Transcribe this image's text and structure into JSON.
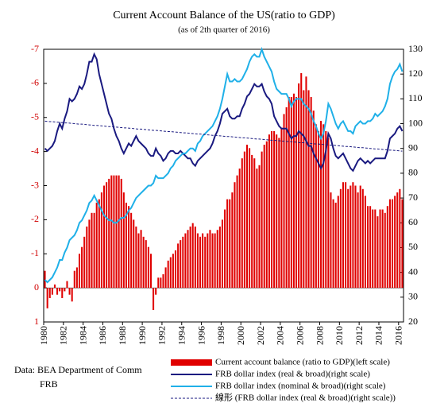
{
  "chart_data": {
    "type": "combo",
    "title": "Current Account Balance  of the US(ratio  to GDP)",
    "subtitle": "(as of 2th quarter of 2016)",
    "source": [
      "Data: BEA Department of Comm",
      "FRB"
    ],
    "legend_position": "bottom",
    "categories": [
      "1980",
      null,
      null,
      null,
      null,
      null,
      null,
      null,
      "1982",
      null,
      null,
      null,
      null,
      null,
      null,
      null,
      "1984",
      null,
      null,
      null,
      null,
      null,
      null,
      null,
      "1986",
      null,
      null,
      null,
      null,
      null,
      null,
      null,
      "1988",
      null,
      null,
      null,
      null,
      null,
      null,
      null,
      "1990",
      null,
      null,
      null,
      null,
      null,
      null,
      null,
      "1992",
      null,
      null,
      null,
      null,
      null,
      null,
      null,
      "1994",
      null,
      null,
      null,
      null,
      null,
      null,
      null,
      "1996",
      null,
      null,
      null,
      null,
      null,
      null,
      null,
      "1998",
      null,
      null,
      null,
      null,
      null,
      null,
      null,
      "2000",
      null,
      null,
      null,
      null,
      null,
      null,
      null,
      "2002",
      null,
      null,
      null,
      null,
      null,
      null,
      null,
      "2004",
      null,
      null,
      null,
      null,
      null,
      null,
      null,
      "2006",
      null,
      null,
      null,
      null,
      null,
      null,
      null,
      "2008",
      null,
      null,
      null,
      null,
      null,
      null,
      null,
      "2010",
      null,
      null,
      null,
      null,
      null,
      null,
      null,
      "2012",
      null,
      null,
      null,
      null,
      null,
      null,
      null,
      "2014",
      null,
      null,
      null,
      null,
      null,
      null,
      null,
      "2016",
      null
    ],
    "ylim": [
      1,
      -7
    ],
    "yticks": [
      -7,
      -6,
      -5,
      -4,
      -3,
      -2,
      -1,
      0,
      1
    ],
    "y2lim": [
      20,
      130
    ],
    "y2ticks": [
      20,
      30,
      40,
      50,
      60,
      70,
      80,
      90,
      100,
      110,
      120,
      130
    ],
    "series": [
      {
        "name": "Current account balance (ratio to GDP)(left scale)",
        "type": "bar",
        "color": "#e00000",
        "values": [
          -0.5,
          0.6,
          0.3,
          0.2,
          -0.1,
          0.2,
          0.1,
          0.3,
          0.1,
          -0.2,
          0.2,
          0.4,
          -0.5,
          -0.6,
          -1.0,
          -1.2,
          -1.5,
          -1.8,
          -2.0,
          -2.2,
          -2.2,
          -2.5,
          -2.6,
          -2.8,
          -3.0,
          -3.1,
          -3.2,
          -3.3,
          -3.3,
          -3.3,
          -3.3,
          -3.2,
          -2.8,
          -2.5,
          -2.4,
          -2.2,
          -2.0,
          -1.8,
          -1.6,
          -1.7,
          -1.5,
          -1.4,
          -1.2,
          -1.0,
          0.65,
          0.2,
          -0.3,
          -0.3,
          -0.4,
          -0.6,
          -0.8,
          -0.9,
          -1.0,
          -1.1,
          -1.3,
          -1.4,
          -1.5,
          -1.6,
          -1.7,
          -1.8,
          -1.9,
          -1.8,
          -1.6,
          -1.5,
          -1.6,
          -1.5,
          -1.6,
          -1.7,
          -1.6,
          -1.6,
          -1.7,
          -1.8,
          -2.0,
          -2.3,
          -2.6,
          -2.6,
          -2.8,
          -3.1,
          -3.3,
          -3.5,
          -3.8,
          -4.0,
          -4.2,
          -4.1,
          -3.9,
          -3.8,
          -3.5,
          -3.6,
          -4.0,
          -4.2,
          -4.3,
          -4.5,
          -4.6,
          -4.6,
          -4.5,
          -4.4,
          -4.7,
          -5.1,
          -5.3,
          -5.6,
          -5.6,
          -5.7,
          -5.6,
          -6.0,
          -6.3,
          -5.8,
          -6.2,
          -5.8,
          -5.6,
          -5.2,
          -4.8,
          -4.6,
          -4.9,
          -4.8,
          -4.6,
          -4.4,
          -2.8,
          -2.6,
          -2.5,
          -2.7,
          -2.9,
          -3.1,
          -3.1,
          -2.9,
          -3.0,
          -3.1,
          -3.0,
          -2.8,
          -3.0,
          -2.9,
          -2.7,
          -2.4,
          -2.4,
          -2.3,
          -2.3,
          -2.1,
          -2.3,
          -2.3,
          -2.2,
          -2.4,
          -2.6,
          -2.6,
          -2.7,
          -2.8,
          -2.9,
          -2.6
        ]
      },
      {
        "name": "FRB dollar index (real & broad)(right scale)",
        "type": "line",
        "axis": "y2",
        "color": "#1a1a80",
        "values": [
          90,
          89,
          90,
          91,
          93,
          97,
          100,
          98,
          102,
          105,
          110,
          109,
          110,
          112,
          115,
          114,
          116,
          120,
          125,
          125,
          128,
          126,
          120,
          116,
          112,
          108,
          104,
          102,
          98,
          95,
          93,
          90,
          88,
          90,
          92,
          91,
          93,
          95,
          93,
          92,
          91,
          90,
          88,
          87,
          87,
          90,
          88,
          87,
          85,
          86,
          88,
          89,
          89,
          88,
          88,
          89,
          88,
          87,
          86,
          86,
          84,
          83,
          85,
          86,
          87,
          88,
          89,
          90,
          92,
          95,
          97,
          100,
          104,
          105,
          106,
          103,
          102,
          102,
          103,
          103,
          106,
          108,
          111,
          112,
          114,
          116,
          115,
          115,
          116,
          113,
          111,
          110,
          108,
          103,
          101,
          99,
          98,
          98,
          98,
          96,
          94,
          95,
          95,
          97,
          96,
          95,
          93,
          91,
          91,
          88,
          86,
          84,
          82,
          84,
          89,
          96,
          94,
          90,
          87,
          86,
          87,
          88,
          86,
          84,
          82,
          81,
          83,
          85,
          86,
          85,
          84,
          85,
          84,
          85,
          86,
          86,
          86,
          86,
          86,
          89,
          94,
          95,
          96,
          98,
          99,
          97
        ]
      },
      {
        "name": "FRB dollar index (nominal & broad)(right scale)",
        "type": "line",
        "axis": "y2",
        "color": "#1fb0e8",
        "values": [
          37,
          36,
          37,
          38,
          40,
          42,
          45,
          45,
          48,
          50,
          53,
          54,
          55,
          57,
          60,
          61,
          63,
          65,
          68,
          69,
          71,
          69,
          67,
          65,
          63,
          62,
          61,
          61,
          60,
          60,
          61,
          62,
          62,
          63,
          65,
          66,
          68,
          70,
          71,
          72,
          73,
          74,
          75,
          75,
          76,
          79,
          78,
          78,
          78,
          79,
          80,
          82,
          83,
          85,
          86,
          87,
          88,
          88,
          89,
          90,
          90,
          89,
          92,
          93,
          95,
          96,
          97,
          98,
          99,
          101,
          103,
          106,
          110,
          115,
          120,
          117,
          117,
          118,
          117,
          117,
          118,
          120,
          122,
          125,
          127,
          128,
          127,
          127,
          130,
          127,
          125,
          123,
          121,
          117,
          114,
          113,
          112,
          112,
          112,
          110,
          107,
          109,
          110,
          110,
          110,
          108,
          107,
          106,
          104,
          101,
          99,
          96,
          94,
          96,
          101,
          108,
          106,
          103,
          100,
          98,
          100,
          101,
          99,
          97,
          97,
          96,
          99,
          100,
          101,
          100,
          100,
          101,
          101,
          102,
          104,
          103,
          104,
          105,
          107,
          110,
          116,
          119,
          121,
          122,
          124,
          121
        ]
      },
      {
        "name": "線形 (FRB dollar index (real & broad)(right scale))",
        "type": "line",
        "axis": "y2",
        "color": "#1a1a80",
        "dashed": true,
        "values": [
          101.0,
          100.9,
          100.8,
          100.8,
          100.7,
          100.6,
          100.5,
          100.4,
          100.3,
          100.3,
          100.2,
          100.1,
          100.0,
          99.9,
          99.8,
          99.8,
          99.7,
          99.6,
          99.5,
          99.4,
          99.3,
          99.3,
          99.2,
          99.1,
          99.0,
          98.9,
          98.8,
          98.8,
          98.7,
          98.6,
          98.5,
          98.4,
          98.3,
          98.3,
          98.2,
          98.1,
          98.0,
          97.9,
          97.8,
          97.8,
          97.7,
          97.6,
          97.5,
          97.4,
          97.3,
          97.3,
          97.2,
          97.1,
          97.0,
          96.9,
          96.8,
          96.8,
          96.7,
          96.6,
          96.5,
          96.4,
          96.3,
          96.3,
          96.2,
          96.1,
          96.0,
          95.9,
          95.8,
          95.8,
          95.7,
          95.6,
          95.5,
          95.4,
          95.3,
          95.3,
          95.2,
          95.1,
          95.0,
          94.9,
          94.8,
          94.8,
          94.7,
          94.6,
          94.5,
          94.4,
          94.3,
          94.3,
          94.2,
          94.1,
          94.0,
          93.9,
          93.8,
          93.8,
          93.7,
          93.6,
          93.5,
          93.4,
          93.3,
          93.3,
          93.2,
          93.1,
          93.0,
          92.9,
          92.8,
          92.8,
          92.7,
          92.6,
          92.5,
          92.4,
          92.3,
          92.3,
          92.2,
          92.1,
          92.0,
          91.9,
          91.8,
          91.8,
          91.7,
          91.6,
          91.5,
          91.4,
          91.3,
          91.3,
          91.2,
          91.1,
          91.0,
          90.9,
          90.8,
          90.8,
          90.7,
          90.6,
          90.5,
          90.4,
          90.3,
          90.3,
          90.2,
          90.1,
          90.0,
          89.9,
          89.8,
          89.8,
          89.7,
          89.6,
          89.5,
          89.4,
          89.3,
          89.3,
          89.2,
          89.1,
          89.0,
          88.9
        ]
      }
    ]
  }
}
